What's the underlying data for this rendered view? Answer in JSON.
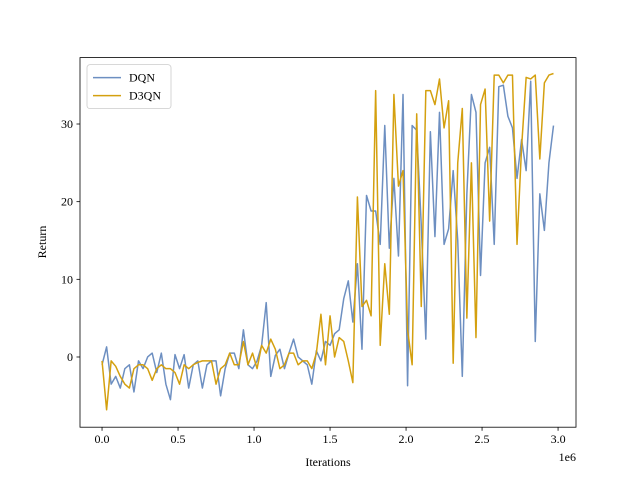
{
  "chart_data": {
    "type": "line",
    "xlabel": "Iterations",
    "ylabel": "Return",
    "x_offset_label": "1e6",
    "x": [
      0,
      0.03,
      0.06,
      0.09,
      0.12,
      0.15,
      0.18,
      0.21,
      0.24,
      0.27,
      0.3,
      0.33,
      0.36,
      0.39,
      0.42,
      0.45,
      0.48,
      0.51,
      0.54,
      0.57,
      0.6,
      0.63,
      0.66,
      0.69,
      0.72,
      0.75,
      0.78,
      0.81,
      0.84,
      0.87,
      0.9,
      0.93,
      0.96,
      0.99,
      1.02,
      1.05,
      1.08,
      1.11,
      1.14,
      1.17,
      1.2,
      1.23,
      1.26,
      1.29,
      1.32,
      1.35,
      1.38,
      1.41,
      1.44,
      1.47,
      1.5,
      1.53,
      1.56,
      1.59,
      1.62,
      1.65,
      1.68,
      1.71,
      1.74,
      1.77,
      1.8,
      1.83,
      1.86,
      1.89,
      1.92,
      1.95,
      1.98,
      2.01,
      2.04,
      2.07,
      2.1,
      2.13,
      2.16,
      2.19,
      2.22,
      2.25,
      2.28,
      2.31,
      2.34,
      2.37,
      2.4,
      2.43,
      2.46,
      2.49,
      2.52,
      2.55,
      2.58,
      2.61,
      2.64,
      2.67,
      2.7,
      2.73,
      2.76,
      2.79,
      2.82,
      2.85,
      2.88,
      2.91,
      2.94,
      2.97
    ],
    "series": [
      {
        "name": "DQN",
        "color": "#6d8fc1",
        "values": [
          -1,
          1.3,
          -3.5,
          -2.5,
          -4,
          -1.5,
          -1,
          -4.5,
          -0.5,
          -1.5,
          0,
          0.5,
          -2,
          0.5,
          -3.5,
          -5.5,
          0.3,
          -1.5,
          0.3,
          -4,
          -1,
          -0.5,
          -4,
          -1,
          -0.5,
          -0.5,
          -5,
          -1.5,
          0.5,
          0.5,
          -1.5,
          3.5,
          -1,
          -1.5,
          -0.5,
          1.5,
          7,
          -2.5,
          0.2,
          1,
          -1.5,
          0.5,
          2.3,
          0,
          -0.5,
          -1,
          -3.5,
          0.8,
          -0.5,
          2,
          1.5,
          3,
          3.5,
          7.5,
          9.8,
          4.5,
          12,
          1,
          20.8,
          18.8,
          18.8,
          14.5,
          29.8,
          14,
          23,
          13,
          33.8,
          -3.7,
          29.8,
          29.2,
          17,
          2.3,
          29,
          15.5,
          31.5,
          14.5,
          16.5,
          24,
          15,
          -2.5,
          21,
          33.8,
          31.5,
          10.5,
          25,
          27,
          14.5,
          34.8,
          35,
          31,
          29.5,
          23,
          28,
          24,
          35.5,
          2,
          21,
          16.3,
          25,
          29.8
        ]
      },
      {
        "name": "D3QN",
        "color": "#d4a00f",
        "values": [
          -0.5,
          -6.8,
          -0.5,
          -1.2,
          -2.5,
          -3.5,
          -4,
          -1.5,
          -1,
          -1,
          -1.5,
          -3,
          -1.5,
          -1,
          -1.5,
          -1.5,
          -2,
          -3.5,
          -1,
          -1.5,
          -1,
          -0.7,
          -0.5,
          -0.5,
          -0.5,
          -3.5,
          -1.5,
          -1,
          0.5,
          -1,
          -1,
          2,
          -1,
          0.5,
          -1.5,
          1.5,
          0.5,
          2.3,
          1,
          -1.5,
          -1,
          0.5,
          0.5,
          -1,
          -0.5,
          -0.5,
          -1.5,
          0.5,
          5.5,
          -1,
          5.3,
          0,
          2.5,
          2,
          -0.5,
          -3.3,
          20.6,
          6.5,
          7.3,
          5.3,
          34.3,
          1.5,
          12,
          5.5,
          33.8,
          22,
          24,
          3.5,
          -1,
          31.3,
          6.5,
          34.3,
          34.3,
          32.5,
          35.8,
          29.5,
          33,
          -0.8,
          25,
          32,
          5,
          25,
          2.5,
          32.5,
          34.5,
          17.5,
          36.3,
          36.3,
          35.3,
          36.3,
          36.3,
          14.5,
          27,
          36,
          35.8,
          36.3,
          25.5,
          35.3,
          36.3,
          36.5
        ]
      }
    ],
    "xlim": [
      -0.145,
      3.118
    ],
    "ylim": [
      -9.04,
      38.55
    ],
    "xticks": [
      {
        "value": 0,
        "label": "0.0"
      },
      {
        "value": 0.5,
        "label": "0.5"
      },
      {
        "value": 1,
        "label": "1.0"
      },
      {
        "value": 1.5,
        "label": "1.5"
      },
      {
        "value": 2,
        "label": "2.0"
      },
      {
        "value": 2.5,
        "label": "2.5"
      },
      {
        "value": 3,
        "label": "3.0"
      }
    ],
    "yticks": [
      0,
      10,
      20,
      30
    ],
    "legend": "upper left"
  }
}
